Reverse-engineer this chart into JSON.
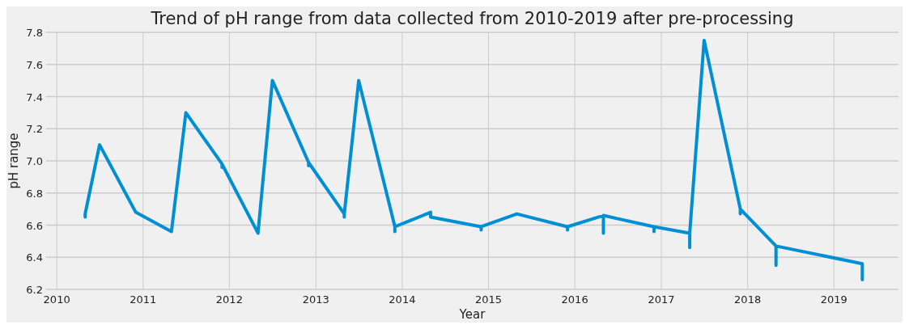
{
  "chart_data": {
    "type": "line",
    "title": "Trend of pH range from data collected from 2010-2019 after pre-processing",
    "xlabel": "Year",
    "ylabel": "pH range",
    "series": [
      {
        "color": "#008fd5",
        "x": [
          "2010-05",
          "2010-05",
          "2010-07",
          "2010-12",
          "2011-05",
          "2011-07",
          "2011-12",
          "2011-12",
          "2011-12",
          "2012-05",
          "2012-07",
          "2012-12",
          "2012-12",
          "2012-12",
          "2013-05",
          "2013-05",
          "2013-05",
          "2013-07",
          "2013-12",
          "2013-12",
          "2013-12",
          "2014-05",
          "2014-05",
          "2014-12",
          "2014-12",
          "2014-12",
          "2015-05",
          "2015-12",
          "2015-12",
          "2015-12",
          "2016-05",
          "2016-05",
          "2016-05",
          "2016-12",
          "2016-12",
          "2016-12",
          "2017-05",
          "2017-05",
          "2017-05",
          "2017-07",
          "2017-12",
          "2017-12",
          "2017-12",
          "2018-05",
          "2018-05",
          "2018-05",
          "2019-05",
          "2019-05"
        ],
        "values": [
          6.65,
          6.67,
          7.1,
          6.68,
          6.56,
          7.3,
          6.98,
          6.96,
          6.98,
          6.55,
          7.5,
          6.99,
          6.97,
          6.99,
          6.67,
          6.65,
          6.67,
          7.5,
          6.59,
          6.56,
          6.59,
          6.68,
          6.65,
          6.59,
          6.57,
          6.59,
          6.67,
          6.59,
          6.57,
          6.59,
          6.66,
          6.55,
          6.66,
          6.59,
          6.56,
          6.59,
          6.55,
          6.46,
          6.55,
          7.75,
          6.7,
          6.67,
          6.7,
          6.47,
          6.35,
          6.47,
          6.36,
          6.26
        ]
      }
    ],
    "xlim": [
      "2009-11-17",
      "2019-10-01"
    ],
    "xticks": [
      "2010",
      "2011",
      "2012",
      "2013",
      "2014",
      "2015",
      "2016",
      "2017",
      "2018",
      "2019"
    ],
    "ylim": [
      6.2,
      7.8
    ],
    "yticks": [
      6.2,
      6.4,
      6.6,
      6.8,
      {
        "value": 7,
        "label": "7.0"
      },
      7.2,
      7.4,
      7.6,
      7.8
    ],
    "grid": true,
    "marker": "none",
    "line_style": "solid"
  }
}
